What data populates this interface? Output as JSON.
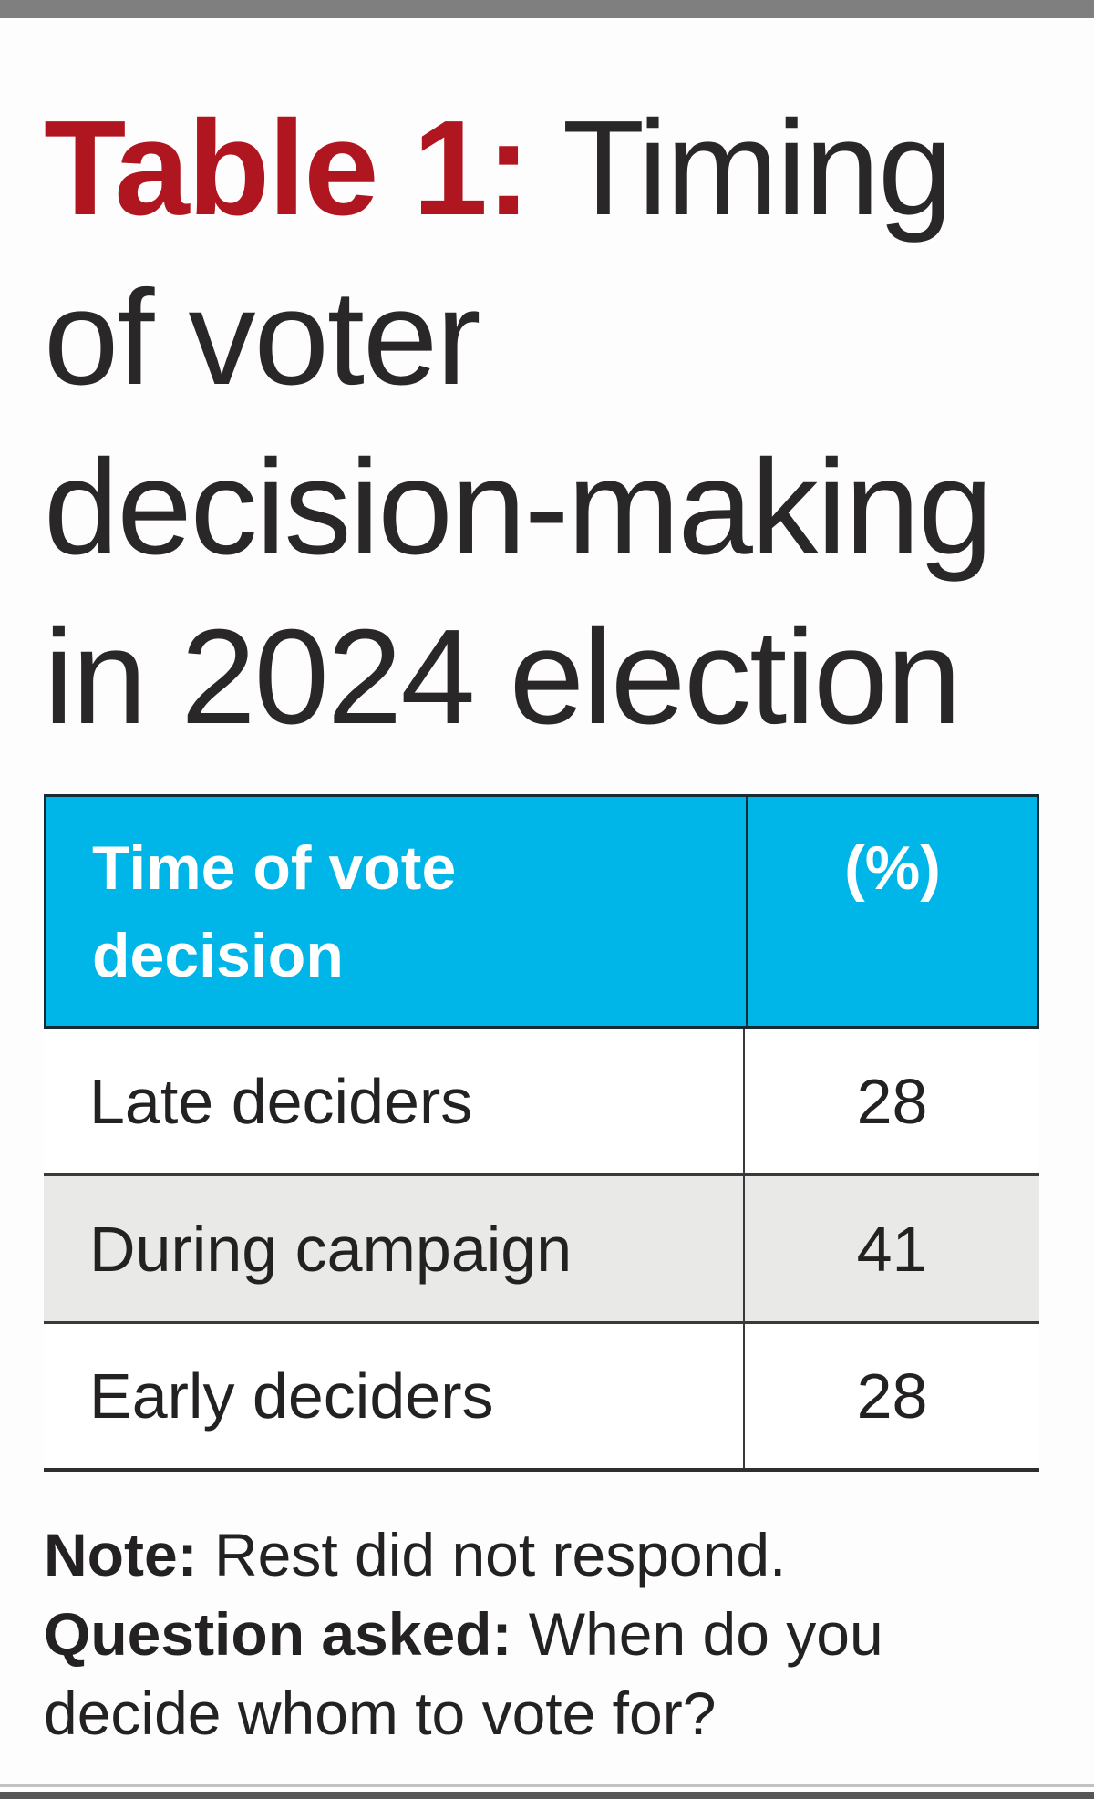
{
  "colors": {
    "accent_red": "#b01620",
    "header_cyan": "#00b5e8",
    "header_border": "#142a35",
    "row_alt_gray": "#e9e9e7",
    "top_bar_gray": "#7f7f7f",
    "bottom_bar_gray": "#565656",
    "text_dark": "#242122"
  },
  "display": {
    "title": {
      "prefix": "Table 1:",
      "line1_rest": " Timing",
      "line2": "of voter",
      "line3": "decision-making",
      "line4": "in 2024 election"
    },
    "note": {
      "label1": "Note:",
      "line1_rest": " Rest did not respond.",
      "label2": "Question asked:",
      "line2_rest": " When do you",
      "line3": "decide whom to vote for?"
    }
  },
  "table": {
    "header": {
      "col1": "Time of vote decision",
      "col2": "(%)"
    },
    "rows": [
      {
        "label": "Late deciders",
        "value": "28",
        "bg": "#ffffff"
      },
      {
        "label": "During campaign",
        "value": "41",
        "bg": "#e9e9e7"
      },
      {
        "label": "Early deciders",
        "value": "28",
        "bg": "#ffffff"
      }
    ]
  },
  "chart_data": {
    "type": "table",
    "title": "Table 1: Timing of voter decision-making in 2024 election",
    "columns": [
      "Time of vote decision",
      "(%)"
    ],
    "rows": [
      [
        "Late deciders",
        28
      ],
      [
        "During campaign",
        41
      ],
      [
        "Early deciders",
        28
      ]
    ],
    "notes": [
      "Note: Rest did not respond.",
      "Question asked: When do you decide whom to vote for?"
    ]
  }
}
